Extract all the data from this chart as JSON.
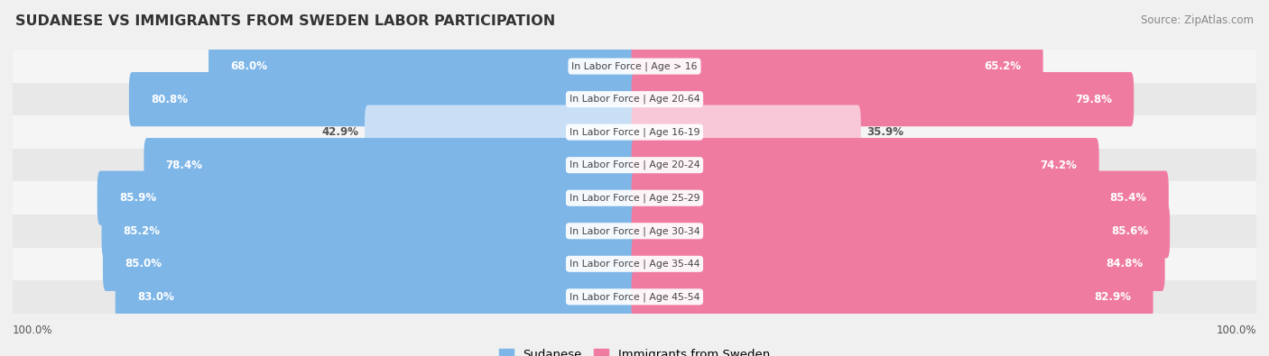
{
  "title": "SUDANESE VS IMMIGRANTS FROM SWEDEN LABOR PARTICIPATION",
  "source": "Source: ZipAtlas.com",
  "categories": [
    "In Labor Force | Age > 16",
    "In Labor Force | Age 20-64",
    "In Labor Force | Age 16-19",
    "In Labor Force | Age 20-24",
    "In Labor Force | Age 25-29",
    "In Labor Force | Age 30-34",
    "In Labor Force | Age 35-44",
    "In Labor Force | Age 45-54"
  ],
  "sudanese": [
    68.0,
    80.8,
    42.9,
    78.4,
    85.9,
    85.2,
    85.0,
    83.0
  ],
  "immigrants": [
    65.2,
    79.8,
    35.9,
    74.2,
    85.4,
    85.6,
    84.8,
    82.9
  ],
  "sudanese_color": "#7EB6E8",
  "immigrants_color": "#F07BA0",
  "sudanese_light_color": "#C8DFF5",
  "immigrants_light_color": "#F8C8D8",
  "background_color": "#f0f0f0",
  "row_bg_even": "#f5f5f5",
  "row_bg_odd": "#e8e8e8",
  "max_value": 100.0,
  "bar_height": 0.65,
  "legend_sudanese": "Sudanese",
  "legend_immigrants": "Immigrants from Sweden",
  "light_threshold": 60
}
